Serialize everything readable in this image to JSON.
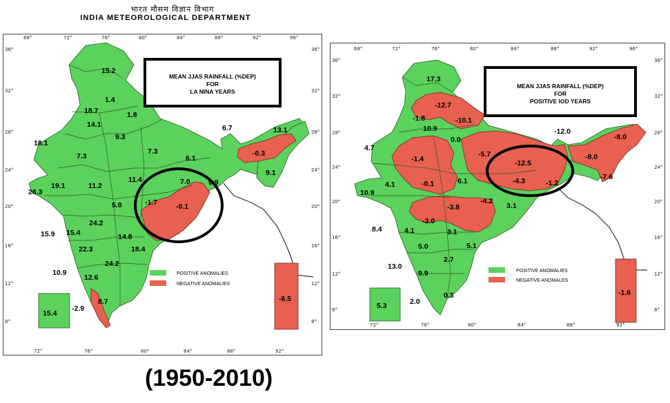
{
  "header": {
    "hindi": "भारत मौसम विज्ञान विभाग",
    "dept": "INDIA METEOROLOGICAL DEPARTMENT"
  },
  "footer": "(1950-2010)",
  "colors": {
    "positive": "#5bd25b",
    "negative": "#e8604f"
  },
  "maps": [
    {
      "title_lines": [
        "MEAN JJAS RAINFALL (%DEP)",
        "FOR",
        "LA NINA YEARS"
      ],
      "lon_ticks": [
        "68°",
        "72°",
        "76°",
        "80°",
        "84°",
        "88°",
        "92°",
        "96°"
      ],
      "lat_ticks": [
        "36°",
        "32°",
        "28°",
        "24°",
        "20°",
        "16°",
        "12°",
        "8°"
      ],
      "legend": {
        "positive": "POSITIVE ANOMALIES",
        "negative": "NEGATIVE ANOMALIES"
      },
      "values": [
        "15.2",
        "1.4",
        "1.8",
        "18.7",
        "14.1",
        "9.3",
        "18.1",
        "7.3",
        "7.3",
        "6.1",
        "6.7",
        "13.1",
        "-0.3",
        "9.1",
        "26.3",
        "19.1",
        "11.2",
        "11.4",
        "7.0",
        "9.9",
        "-1.7",
        "-0.1",
        "5.0",
        "24.2",
        "15.9",
        "15.4",
        "14.8",
        "22.3",
        "18.4",
        "24.2",
        "10.9",
        "12.6",
        "8.7",
        "-2.9",
        "15.4",
        "-6.5"
      ]
    },
    {
      "title_lines": [
        "MEAN JJAS RAINFALL (%DEP)",
        "FOR",
        "POSITIVE IOD YEARS"
      ],
      "lon_ticks": [
        "68°",
        "72°",
        "76°",
        "80°",
        "84°",
        "88°",
        "92°",
        "96°"
      ],
      "lat_ticks": [
        "36°",
        "32°",
        "28°",
        "24°",
        "20°",
        "16°",
        "12°",
        "8°"
      ],
      "legend": {
        "positive": "POSITIVE ANOMALIES",
        "negative": "NEGATIVE ANOMALES"
      },
      "values": [
        "17.3",
        "-12.7",
        "-1.8",
        "-10.1",
        "10.9",
        "0.0",
        "-12.0",
        "4.7",
        "-1.4",
        "-5.7",
        "-12.5",
        "-8.0",
        "-8.0",
        "-4.3",
        "-1.2",
        "-7.6",
        "-0.1",
        "6.1",
        "4.1",
        "10.9",
        "-3.8",
        "-4.2",
        "3.1",
        "-3.0",
        "8.4",
        "4.1",
        "3.1",
        "5.0",
        "5.1",
        "2.7",
        "13.0",
        "9.9",
        "2.0",
        "0.3",
        "5.3",
        "-1.6"
      ]
    }
  ]
}
